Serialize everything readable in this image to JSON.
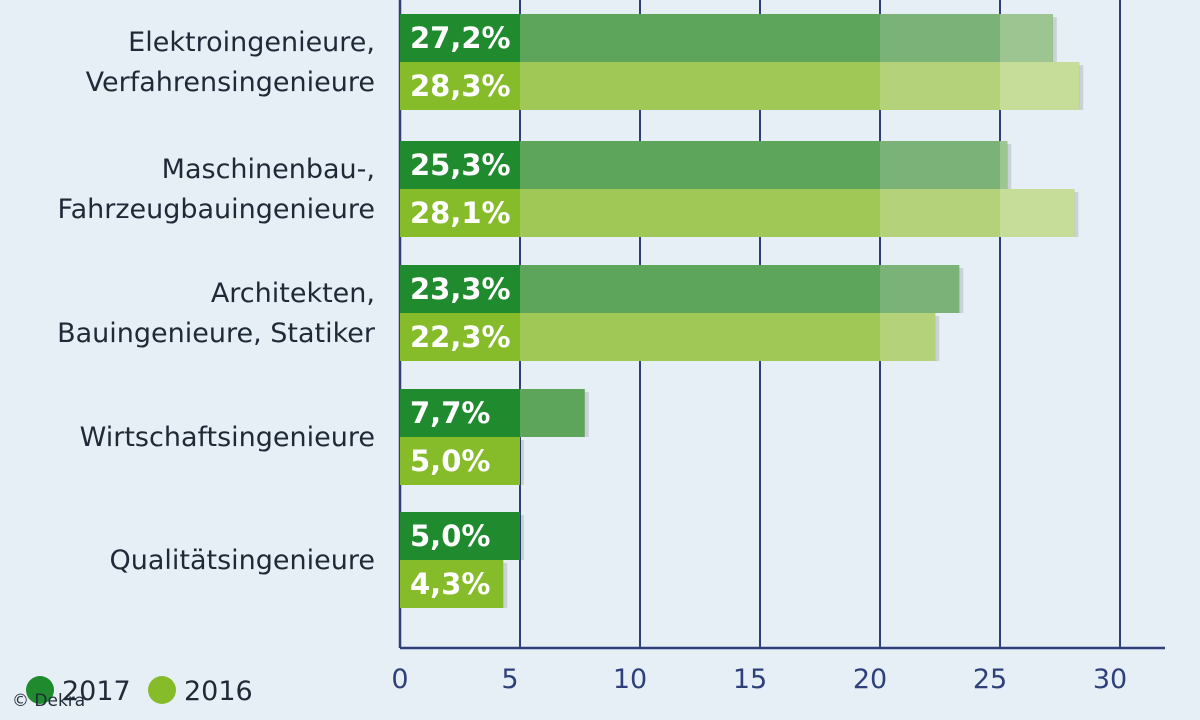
{
  "chart_data": {
    "type": "bar",
    "orientation": "horizontal",
    "categories": [
      [
        "Elektroingenieure,",
        "Verfahrensingenieure"
      ],
      [
        "Maschinenbau-,",
        "Fahrzeugbauingenieure"
      ],
      [
        "Architekten,",
        "Bauingenieure, Statiker"
      ],
      [
        "Wirtschaftsingenieure"
      ],
      [
        "Qualitätsingenieure"
      ]
    ],
    "series": [
      {
        "name": "2017",
        "color": "#1f8a2e",
        "values": [
          27.2,
          25.3,
          23.3,
          7.7,
          5.0
        ],
        "labels": [
          "27,2%",
          "25,3%",
          "23,3%",
          "7,7%",
          "5,0%"
        ]
      },
      {
        "name": "2016",
        "color": "#86bb2a",
        "values": [
          28.3,
          28.1,
          22.3,
          5.0,
          4.3
        ],
        "labels": [
          "28,3%",
          "28,1%",
          "22,3%",
          "5,0%",
          "4,3%"
        ]
      }
    ],
    "x_ticks": [
      "0",
      "5",
      "10",
      "15",
      "20",
      "25",
      "30"
    ],
    "xlim": [
      0,
      30
    ],
    "grid": true,
    "legend_position": "bottom-left"
  },
  "copyright": "© Dekra"
}
